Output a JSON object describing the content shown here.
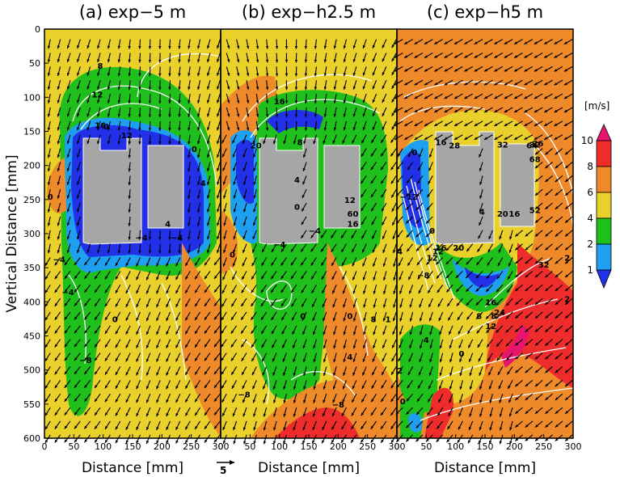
{
  "chart_data": [
    {
      "type": "contour",
      "title": "(a)  exp−5 m",
      "xlabel": "Distance [mm]",
      "ylabel": "Vertical Distance [mm]",
      "xlim": [
        0,
        300
      ],
      "ylim": [
        600,
        0
      ],
      "xticks": [
        "0",
        "50",
        "100",
        "150",
        "200",
        "250",
        "300"
      ],
      "yticks": [
        "0",
        "50",
        "100",
        "150",
        "200",
        "250",
        "300",
        "350",
        "400",
        "450",
        "500",
        "550",
        "600"
      ],
      "contour_labels": [
        "8",
        "12",
        "16",
        "0",
        "12",
        "0",
        "−4",
        "−4",
        "−4",
        "−4",
        "0",
        "4",
        "4",
        "−8",
        "0"
      ]
    },
    {
      "type": "contour",
      "title": "(b)  exp−h2.5 m",
      "xlabel": "Distance [mm]",
      "xlim": [
        0,
        300
      ],
      "xticks": [
        "0",
        "50",
        "100",
        "150",
        "200",
        "250",
        "300"
      ],
      "contour_labels": [
        "16",
        "20",
        "8",
        "4",
        "0",
        "16",
        "12",
        "−4",
        "0",
        "−4",
        "0",
        "0",
        "8",
        "4",
        "−8",
        "−8",
        "60",
        "1"
      ]
    },
    {
      "type": "contour",
      "title": "(c)  exp−h5 m",
      "xlabel": "Distance [mm]",
      "xlim": [
        0,
        300
      ],
      "xticks": [
        "0",
        "50",
        "100",
        "150",
        "200",
        "250",
        "300"
      ],
      "contour_labels": [
        "16",
        "28",
        "32",
        "32",
        "26",
        "0",
        "12",
        "16",
        "20",
        "4",
        "20",
        "16",
        "52",
        "0",
        "−12",
        "12",
        "4",
        "−8",
        "32",
        "2",
        "16",
        "8",
        "12",
        "24",
        "4",
        "0",
        "2",
        "2",
        "0",
        "8",
        "64",
        "68"
      ]
    }
  ],
  "colorbar": {
    "unit": "[m/s]",
    "ticks": [
      "10",
      "8",
      "6",
      "4",
      "2",
      "1"
    ],
    "colors": [
      "#e8156e",
      "#ee2c2c",
      "#ef8a2b",
      "#ead02a",
      "#1fbf1c",
      "#1f9fef",
      "#2230e8"
    ]
  },
  "reference_vector": {
    "label": "5"
  }
}
